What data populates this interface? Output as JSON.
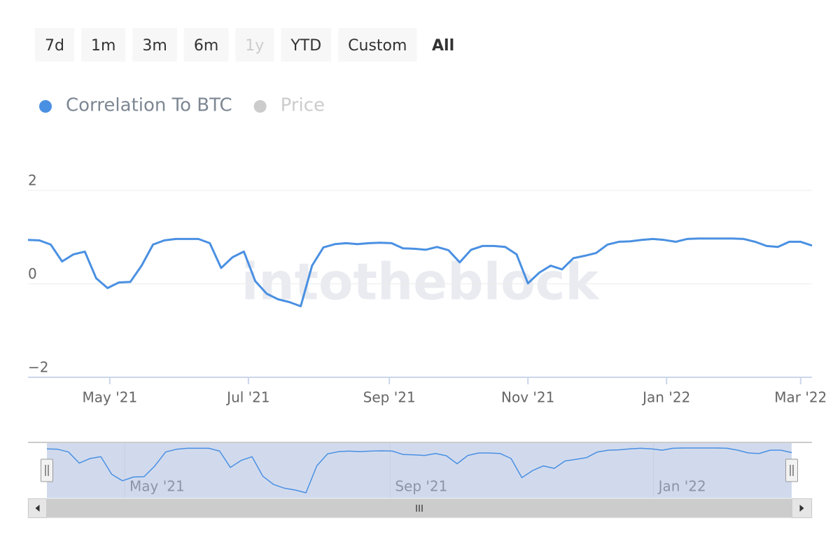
{
  "chart_data": {
    "type": "line",
    "range_buttons": [
      "7d",
      "1m",
      "3m",
      "6m",
      "1y",
      "YTD",
      "Custom",
      "All"
    ],
    "selected_button": "All",
    "disabled_buttons": [
      "1y"
    ],
    "watermark": "intotheblock",
    "x": [
      "2021-03-26",
      "2021-03-31",
      "2021-04-05",
      "2021-04-10",
      "2021-04-15",
      "2021-04-20",
      "2021-04-25",
      "2021-04-30",
      "2021-05-05",
      "2021-05-10",
      "2021-05-15",
      "2021-05-20",
      "2021-05-25",
      "2021-05-30",
      "2021-06-04",
      "2021-06-09",
      "2021-06-14",
      "2021-06-19",
      "2021-06-24",
      "2021-06-29",
      "2021-07-04",
      "2021-07-09",
      "2021-07-14",
      "2021-07-19",
      "2021-07-24",
      "2021-07-29",
      "2021-08-03",
      "2021-08-08",
      "2021-08-13",
      "2021-08-18",
      "2021-08-23",
      "2021-08-28",
      "2021-09-02",
      "2021-09-07",
      "2021-09-12",
      "2021-09-17",
      "2021-09-22",
      "2021-09-27",
      "2021-10-02",
      "2021-10-07",
      "2021-10-12",
      "2021-10-17",
      "2021-10-22",
      "2021-10-27",
      "2021-11-01",
      "2021-11-06",
      "2021-11-11",
      "2021-11-16",
      "2021-11-21",
      "2021-11-26",
      "2021-12-01",
      "2021-12-06",
      "2021-12-11",
      "2021-12-16",
      "2021-12-21",
      "2021-12-26",
      "2021-12-31",
      "2022-01-05",
      "2022-01-10",
      "2022-01-15",
      "2022-01-20",
      "2022-01-25",
      "2022-01-30",
      "2022-02-04",
      "2022-02-09",
      "2022-02-14",
      "2022-02-19",
      "2022-02-24",
      "2022-03-01",
      "2022-03-06"
    ],
    "series": [
      {
        "name": "Correlation To BTC",
        "color": "#4a90e2",
        "visible": true,
        "values": [
          0.94,
          0.93,
          0.84,
          0.48,
          0.63,
          0.69,
          0.12,
          -0.09,
          0.03,
          0.04,
          0.39,
          0.84,
          0.93,
          0.96,
          0.96,
          0.96,
          0.87,
          0.34,
          0.57,
          0.69,
          0.06,
          -0.21,
          -0.33,
          -0.39,
          -0.48,
          0.39,
          0.78,
          0.85,
          0.87,
          0.85,
          0.87,
          0.88,
          0.87,
          0.76,
          0.75,
          0.73,
          0.79,
          0.72,
          0.46,
          0.73,
          0.81,
          0.81,
          0.79,
          0.63,
          0.01,
          0.24,
          0.39,
          0.31,
          0.55,
          0.6,
          0.66,
          0.84,
          0.9,
          0.91,
          0.94,
          0.96,
          0.94,
          0.9,
          0.96,
          0.97,
          0.97,
          0.97,
          0.97,
          0.96,
          0.9,
          0.81,
          0.79,
          0.9,
          0.9,
          0.82
        ]
      },
      {
        "name": "Price",
        "color": "#cccccc",
        "visible": false
      }
    ],
    "xlim": [
      "2021-03-26",
      "2022-03-06"
    ],
    "xticks": [
      {
        "value": "2021-05-01",
        "label": "May '21"
      },
      {
        "value": "2021-07-01",
        "label": "Jul '21"
      },
      {
        "value": "2021-09-01",
        "label": "Sep '21"
      },
      {
        "value": "2021-11-01",
        "label": "Nov '21"
      },
      {
        "value": "2022-01-01",
        "label": "Jan '22"
      },
      {
        "value": "2022-03-01",
        "label": "Mar '22"
      }
    ],
    "ylim": [
      -2,
      2
    ],
    "yticks": [
      {
        "value": -2,
        "label": "−2"
      },
      0,
      2
    ],
    "grid": true,
    "navigator": {
      "xticks": [
        {
          "value": "2021-05-01",
          "label": "May '21"
        },
        {
          "value": "2021-09-01",
          "label": "Sep '21"
        },
        {
          "value": "2022-01-01",
          "label": "Jan '22"
        }
      ]
    }
  }
}
